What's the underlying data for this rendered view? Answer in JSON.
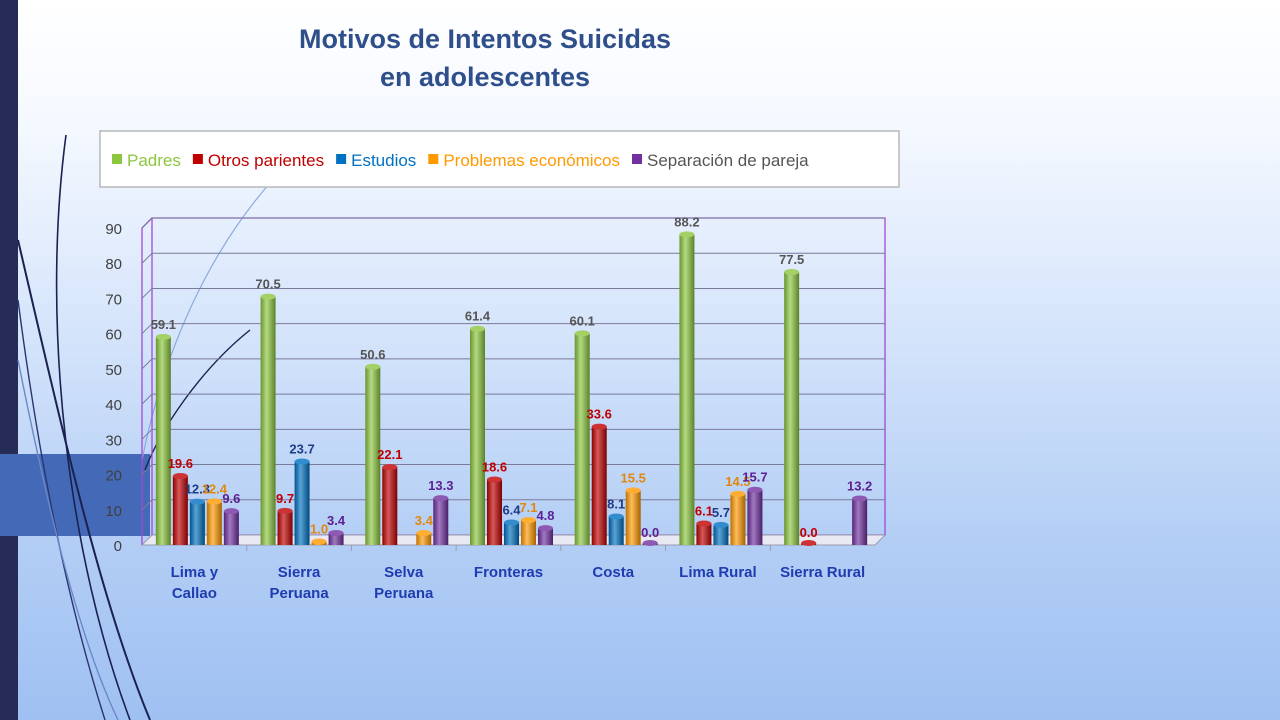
{
  "title_lines": [
    "Motivos de Intentos Suicidas",
    "en adolescentes"
  ],
  "chart_data": {
    "type": "bar",
    "title": "Motivos de Intentos Suicidas en adolescentes",
    "categories": [
      [
        "Lima y",
        "Callao"
      ],
      [
        "Sierra",
        "Peruana"
      ],
      [
        "Selva",
        "Peruana"
      ],
      [
        "Fronteras"
      ],
      [
        "Costa"
      ],
      [
        "Lima Rural"
      ],
      [
        "Sierra Rural"
      ]
    ],
    "series": [
      {
        "name": "Padres",
        "color": "#8cc63f",
        "label_color": "#555555",
        "values": [
          59.1,
          70.5,
          50.6,
          61.4,
          60.1,
          88.2,
          77.5
        ]
      },
      {
        "name": "Otros parientes",
        "color": "#c00000",
        "label_color": "#c00000",
        "values": [
          19.6,
          9.7,
          22.1,
          18.6,
          33.6,
          6.1,
          0.0
        ]
      },
      {
        "name": "Estudios",
        "color": "#0070c0",
        "label_color": "#1f3c88",
        "values": [
          12.3,
          23.7,
          null,
          6.4,
          8.1,
          5.7,
          null
        ]
      },
      {
        "name": "Problemas económicos",
        "color": "#ff9900",
        "label_color": "#e2870c",
        "values": [
          12.4,
          1.0,
          3.4,
          7.1,
          15.5,
          14.5,
          null
        ]
      },
      {
        "name": "Separación de pareja",
        "color": "#7030a0",
        "label_color": "#5b1f91",
        "values": [
          9.6,
          3.4,
          13.3,
          4.8,
          0.0,
          15.7,
          13.2
        ]
      }
    ],
    "value_labels": [
      [
        "59.1",
        "19.6",
        "12.3",
        "12.4",
        "9.6"
      ],
      [
        "70.5",
        "9.7",
        "23.7",
        "1.0",
        "3.4"
      ],
      [
        "50.6",
        "22.1",
        "",
        "3.4",
        "13.3"
      ],
      [
        "61.4",
        "18.6",
        "6.4",
        "7.1",
        "4.8"
      ],
      [
        "60.1",
        "33.6",
        "8.1",
        "15.5",
        "0.0"
      ],
      [
        "88.2",
        "6.1",
        "5.7",
        "14.5",
        "15.7"
      ],
      [
        "77.5",
        "0.0",
        "",
        "",
        "13.2"
      ]
    ],
    "ylim": [
      0,
      90
    ],
    "yticks": [
      "0",
      "10",
      "20",
      "30",
      "40",
      "50",
      "60",
      "70",
      "80",
      "90"
    ],
    "xlabel": "",
    "ylabel": "",
    "grid": true,
    "legend_position": "top"
  }
}
